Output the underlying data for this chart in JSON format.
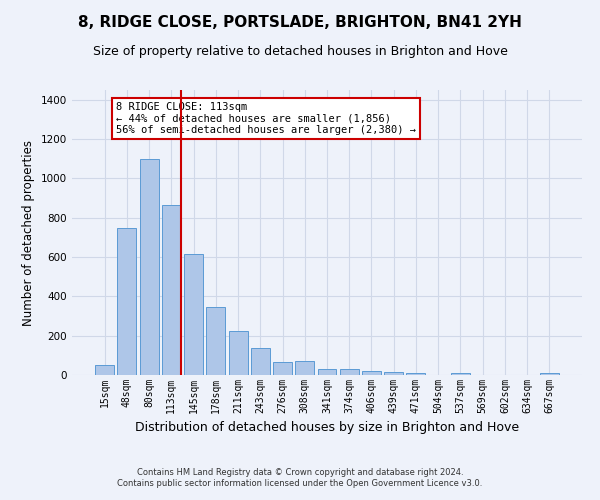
{
  "title": "8, RIDGE CLOSE, PORTSLADE, BRIGHTON, BN41 2YH",
  "subtitle": "Size of property relative to detached houses in Brighton and Hove",
  "xlabel": "Distribution of detached houses by size in Brighton and Hove",
  "ylabel": "Number of detached properties",
  "footer_line1": "Contains HM Land Registry data © Crown copyright and database right 2024.",
  "footer_line2": "Contains public sector information licensed under the Open Government Licence v3.0.",
  "categories": [
    "15sqm",
    "48sqm",
    "80sqm",
    "113sqm",
    "145sqm",
    "178sqm",
    "211sqm",
    "243sqm",
    "276sqm",
    "308sqm",
    "341sqm",
    "374sqm",
    "406sqm",
    "439sqm",
    "471sqm",
    "504sqm",
    "537sqm",
    "569sqm",
    "602sqm",
    "634sqm",
    "667sqm"
  ],
  "values": [
    50,
    750,
    1100,
    865,
    615,
    345,
    225,
    135,
    65,
    70,
    30,
    30,
    20,
    15,
    12,
    0,
    10,
    0,
    0,
    0,
    10
  ],
  "bar_color": "#aec6e8",
  "bar_edge_color": "#5b9bd5",
  "grid_color": "#d0d8e8",
  "background_color": "#eef2fa",
  "red_line_index": 3,
  "red_line_color": "#cc0000",
  "annotation_text": "8 RIDGE CLOSE: 113sqm\n← 44% of detached houses are smaller (1,856)\n56% of semi-detached houses are larger (2,380) →",
  "annotation_box_color": "#ffffff",
  "annotation_border_color": "#cc0000",
  "ylim": [
    0,
    1450
  ],
  "title_fontsize": 11,
  "subtitle_fontsize": 9,
  "xlabel_fontsize": 9,
  "ylabel_fontsize": 8.5,
  "tick_fontsize": 7,
  "annotation_fontsize": 7.5,
  "footer_fontsize": 6
}
